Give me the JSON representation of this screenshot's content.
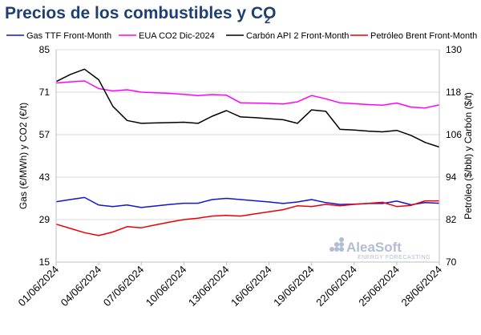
{
  "title": {
    "main": "Precios de los combustibles y CO",
    "sub": "2"
  },
  "watermark": {
    "name": "AleaSoft",
    "tagline": "ENERGY FORECASTING"
  },
  "chart_data": {
    "type": "line",
    "x": [
      "01/06/2024",
      "02/06/2024",
      "03/06/2024",
      "04/06/2024",
      "05/06/2024",
      "06/06/2024",
      "07/06/2024",
      "08/06/2024",
      "09/06/2024",
      "10/06/2024",
      "11/06/2024",
      "12/06/2024",
      "13/06/2024",
      "14/06/2024",
      "15/06/2024",
      "16/06/2024",
      "17/06/2024",
      "18/06/2024",
      "19/06/2024",
      "20/06/2024",
      "21/06/2024",
      "22/06/2024",
      "23/06/2024",
      "24/06/2024",
      "25/06/2024",
      "26/06/2024",
      "27/06/2024",
      "28/06/2024"
    ],
    "xticks": [
      "01/06/2024",
      "04/06/2024",
      "07/06/2024",
      "10/06/2024",
      "13/06/2024",
      "16/06/2024",
      "19/06/2024",
      "22/06/2024",
      "25/06/2024",
      "28/06/2024"
    ],
    "y_left": {
      "label": "Gas (€/MWh) y CO2 (€/t)",
      "range": [
        15,
        85
      ],
      "ticks": [
        15,
        29,
        43,
        57,
        71,
        85
      ]
    },
    "y_right": {
      "label": "Petróleo ($/bbl) y Carbón ($/t)",
      "range": [
        70,
        130
      ],
      "ticks": [
        70,
        82,
        94,
        106,
        118,
        130
      ]
    },
    "grid": "horizontal",
    "legend_position": "top",
    "series": [
      {
        "name": "Gas TTF Front-Month",
        "color": "#1414d4",
        "axis": "left",
        "start_index": 0,
        "values": [
          34.9,
          35.6,
          36.3,
          33.8,
          33.3,
          33.8,
          33.0,
          33.5,
          34.0,
          34.4,
          34.4,
          35.6,
          36.0,
          35.6,
          35.2,
          34.8,
          34.3,
          34.8,
          35.6,
          34.6,
          34.0,
          34.1,
          34.3,
          34.3,
          35.1,
          33.9,
          34.6,
          34.4
        ]
      },
      {
        "name": "EUA CO2 Dic-2024",
        "color": "#ff00ff",
        "axis": "left",
        "start_index": 0,
        "values": [
          74.0,
          74.4,
          74.7,
          72.2,
          71.4,
          71.8,
          71.0,
          70.8,
          70.6,
          70.3,
          69.9,
          70.2,
          70.0,
          67.5,
          67.4,
          67.3,
          67.1,
          67.8,
          69.9,
          68.8,
          67.5,
          67.2,
          66.9,
          66.7,
          67.4,
          66.1,
          65.8,
          66.8
        ]
      },
      {
        "name": "Carbón API 2 Front-Month",
        "color": "#000000",
        "axis": "right",
        "start_index": 0,
        "values": [
          121.0,
          123.0,
          124.5,
          121.5,
          114.0,
          110.0,
          109.2,
          109.3,
          109.4,
          109.5,
          109.2,
          111.2,
          112.8,
          111.0,
          110.8,
          110.5,
          110.2,
          109.2,
          113.0,
          112.6,
          107.5,
          107.3,
          107.0,
          106.8,
          107.2,
          105.8,
          103.8,
          102.5
        ]
      },
      {
        "name": "Petróleo Brent Front-Month",
        "color": "#ee0000",
        "axis": "right",
        "start_index": 0,
        "values": [
          80.7,
          79.5,
          78.3,
          77.5,
          78.5,
          80.0,
          79.7,
          80.5,
          81.3,
          82.0,
          82.4,
          83.0,
          83.2,
          83.0,
          83.6,
          84.2,
          84.8,
          85.9,
          85.7,
          86.3,
          85.9,
          86.3,
          86.6,
          86.9,
          85.7,
          86.0,
          87.3,
          87.3
        ]
      }
    ]
  }
}
